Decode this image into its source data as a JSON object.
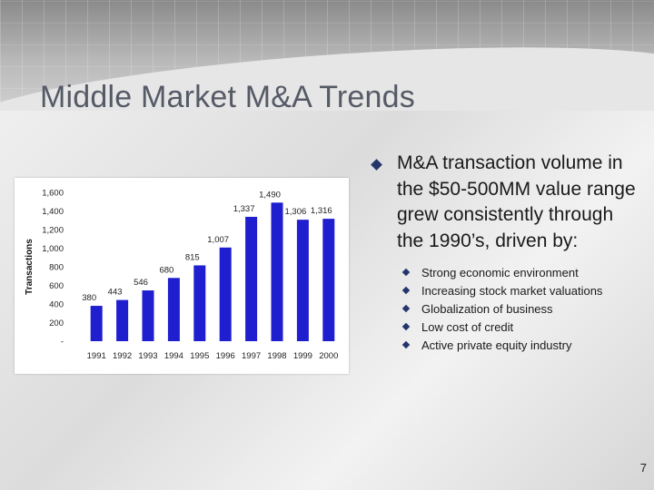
{
  "slide": {
    "title": "Middle Market M&A Trends",
    "page_number": "7"
  },
  "bullets": {
    "main": "M&A transaction volume in the $50-500MM value range grew consistently through the 1990’s, driven by:",
    "sub_items": [
      "Strong economic environment",
      "Increasing stock market valuations",
      "Globalization of business",
      "Low  cost of credit",
      "Active private equity industry"
    ]
  },
  "colors": {
    "bar": "#1f1fd0",
    "bullet": "#24356b"
  },
  "chart_data": {
    "type": "bar",
    "categories": [
      "1991",
      "1992",
      "1993",
      "1994",
      "1995",
      "1996",
      "1997",
      "1998",
      "1999",
      "2000"
    ],
    "values": [
      380,
      443,
      546,
      680,
      815,
      1007,
      1337,
      1490,
      1306,
      1316
    ],
    "value_labels": [
      "380",
      "443",
      "546",
      "680",
      "815",
      "1,007",
      "1,337",
      "1,490",
      "1,306",
      "1,316"
    ],
    "ylabel": "Transactions",
    "xlabel": "",
    "ylim": [
      0,
      1600
    ],
    "y_ticks": [
      0,
      200,
      400,
      600,
      800,
      1000,
      1200,
      1400,
      1600
    ],
    "y_tick_labels": [
      "-",
      "200",
      "400",
      "600",
      "800",
      "1,000",
      "1,200",
      "1,400",
      "1,600"
    ],
    "grid": false,
    "legend": "none"
  }
}
